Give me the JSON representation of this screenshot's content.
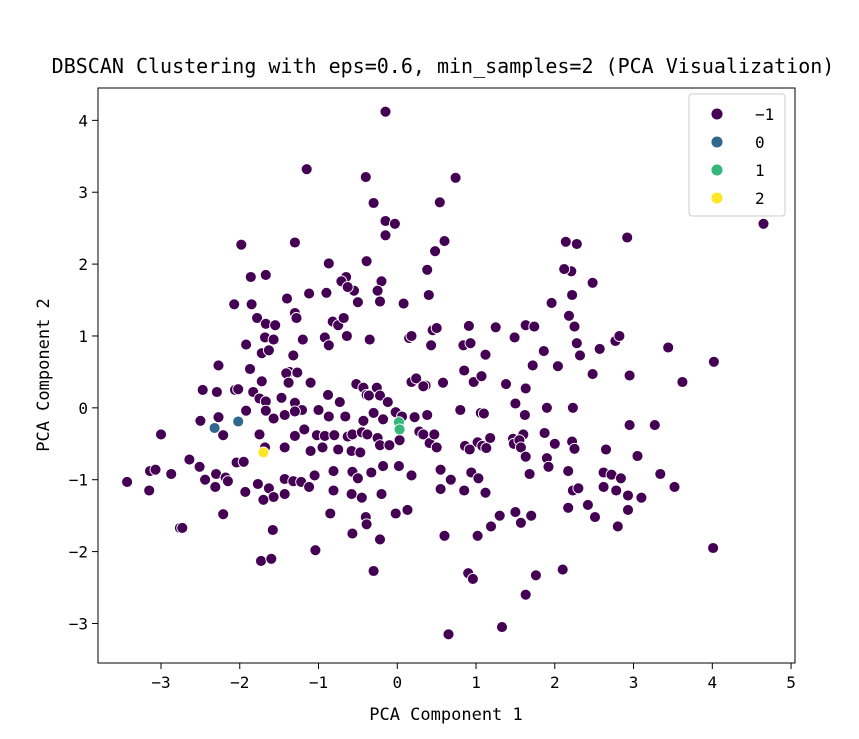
{
  "chart_data": {
    "type": "scatter",
    "title": "DBSCAN Clustering with eps=0.6, min_samples=2 (PCA Visualization)",
    "xlabel": "PCA Component 1",
    "ylabel": "PCA Component 2",
    "xlim": [
      -3.8,
      5.05
    ],
    "ylim": [
      -3.55,
      4.45
    ],
    "xticks": [
      -3,
      -2,
      -1,
      0,
      1,
      2,
      3,
      4,
      5
    ],
    "yticks": [
      -3,
      -2,
      -1,
      0,
      1,
      2,
      3,
      4
    ],
    "xtick_labels": [
      "−3",
      "−2",
      "−1",
      "0",
      "1",
      "2",
      "3",
      "4",
      "5"
    ],
    "ytick_labels": [
      "−3",
      "−2",
      "−1",
      "0",
      "1",
      "2",
      "3",
      "4"
    ],
    "grid": false,
    "legend_position": "top-right",
    "series": [
      {
        "name": "−1",
        "color": "#440154",
        "points": [
          [
            -0.15,
            4.12
          ],
          [
            -1.15,
            3.32
          ],
          [
            -0.4,
            3.21
          ],
          [
            0.74,
            3.2
          ],
          [
            -0.3,
            2.85
          ],
          [
            0.54,
            2.86
          ],
          [
            -0.15,
            2.6
          ],
          [
            -0.03,
            2.56
          ],
          [
            -0.15,
            2.4
          ],
          [
            0.6,
            2.32
          ],
          [
            0.48,
            2.18
          ],
          [
            -1.3,
            2.3
          ],
          [
            -1.98,
            2.27
          ],
          [
            -0.87,
            2.01
          ],
          [
            -0.39,
            2.04
          ],
          [
            0.38,
            1.92
          ],
          [
            -0.65,
            1.82
          ],
          [
            -0.71,
            1.76
          ],
          [
            -1.67,
            1.85
          ],
          [
            -1.86,
            1.82
          ],
          [
            -1.12,
            1.59
          ],
          [
            -0.9,
            1.6
          ],
          [
            -0.55,
            1.63
          ],
          [
            -0.63,
            1.68
          ],
          [
            -0.2,
            1.76
          ],
          [
            -0.25,
            1.63
          ],
          [
            -0.22,
            1.48
          ],
          [
            -0.5,
            1.47
          ],
          [
            0.08,
            1.45
          ],
          [
            0.4,
            1.57
          ],
          [
            -2.07,
            1.44
          ],
          [
            -1.85,
            1.44
          ],
          [
            -1.4,
            1.52
          ],
          [
            -1.3,
            1.32
          ],
          [
            -1.28,
            1.25
          ],
          [
            -1.78,
            1.25
          ],
          [
            -1.67,
            1.17
          ],
          [
            -1.55,
            1.15
          ],
          [
            -0.82,
            1.2
          ],
          [
            -0.75,
            1.15
          ],
          [
            -0.68,
            1.25
          ],
          [
            0.45,
            1.08
          ],
          [
            0.5,
            1.11
          ],
          [
            0.91,
            1.14
          ],
          [
            1.25,
            1.12
          ],
          [
            1.63,
            1.15
          ],
          [
            1.74,
            1.13
          ],
          [
            -1.92,
            0.88
          ],
          [
            -1.68,
            0.98
          ],
          [
            -1.57,
            0.95
          ],
          [
            -1.2,
            0.95
          ],
          [
            -0.92,
            0.98
          ],
          [
            -0.87,
            0.87
          ],
          [
            -0.64,
            1.0
          ],
          [
            -0.35,
            0.95
          ],
          [
            0.15,
            0.97
          ],
          [
            0.18,
            1.0
          ],
          [
            0.43,
            0.87
          ],
          [
            0.84,
            0.87
          ],
          [
            0.93,
            0.9
          ],
          [
            1.12,
            0.74
          ],
          [
            1.49,
            0.98
          ],
          [
            1.86,
            0.79
          ],
          [
            2.18,
            1.28
          ],
          [
            2.25,
            1.13
          ],
          [
            2.48,
            1.74
          ],
          [
            2.22,
            1.57
          ],
          [
            2.28,
            2.28
          ],
          [
            2.14,
            2.31
          ],
          [
            2.21,
            1.9
          ],
          [
            2.12,
            1.93
          ],
          [
            2.92,
            2.37
          ],
          [
            2.77,
            0.93
          ],
          [
            2.82,
            1.0
          ],
          [
            2.28,
            0.9
          ],
          [
            2.57,
            0.82
          ],
          [
            3.44,
            0.84
          ],
          [
            2.32,
            0.73
          ],
          [
            1.96,
            1.46
          ],
          [
            -2.27,
            0.59
          ],
          [
            -1.72,
            0.76
          ],
          [
            -1.63,
            0.8
          ],
          [
            -1.32,
            0.73
          ],
          [
            -1.37,
            0.5
          ],
          [
            -1.41,
            0.48
          ],
          [
            -1.27,
            0.49
          ],
          [
            -1.1,
            0.35
          ],
          [
            -1.38,
            0.35
          ],
          [
            -1.72,
            0.37
          ],
          [
            -1.87,
            0.54
          ],
          [
            -2.06,
            0.25
          ],
          [
            -2.29,
            0.22
          ],
          [
            -2.47,
            0.25
          ],
          [
            -2.02,
            0.26
          ],
          [
            -1.83,
            0.22
          ],
          [
            -1.75,
            0.13
          ],
          [
            -1.67,
            0.09
          ],
          [
            -1.47,
            0.14
          ],
          [
            -1.3,
            0.07
          ],
          [
            -1.21,
            -0.03
          ],
          [
            -0.88,
            0.18
          ],
          [
            -0.73,
            0.08
          ],
          [
            -0.52,
            0.33
          ],
          [
            -0.43,
            0.28
          ],
          [
            -0.39,
            0.18
          ],
          [
            -0.36,
            0.17
          ],
          [
            -0.26,
            0.28
          ],
          [
            -0.22,
            0.17
          ],
          [
            -0.12,
            0.08
          ],
          [
            0.18,
            0.36
          ],
          [
            0.24,
            0.41
          ],
          [
            0.36,
            0.31
          ],
          [
            0.33,
            0.3
          ],
          [
            0.85,
            0.52
          ],
          [
            0.58,
            0.35
          ],
          [
            0.97,
            0.36
          ],
          [
            1.07,
            0.44
          ],
          [
            1.38,
            0.33
          ],
          [
            1.72,
            0.59
          ],
          [
            1.63,
            0.27
          ],
          [
            2.04,
            0.58
          ],
          [
            2.48,
            0.47
          ],
          [
            2.95,
            0.45
          ],
          [
            3.62,
            0.36
          ],
          [
            4.02,
            0.64
          ],
          [
            -2.21,
            -0.38
          ],
          [
            -2.5,
            -0.18
          ],
          [
            -2.27,
            -0.13
          ],
          [
            -1.92,
            -0.04
          ],
          [
            -1.67,
            -0.04
          ],
          [
            -1.57,
            -0.15
          ],
          [
            -1.43,
            -0.1
          ],
          [
            -1.3,
            -0.05
          ],
          [
            -1.0,
            -0.03
          ],
          [
            -0.87,
            -0.12
          ],
          [
            -0.66,
            -0.12
          ],
          [
            -0.43,
            -0.18
          ],
          [
            -0.3,
            -0.07
          ],
          [
            -0.18,
            -0.16
          ],
          [
            -0.02,
            -0.06
          ],
          [
            0.06,
            -0.12
          ],
          [
            0.22,
            -0.13
          ],
          [
            0.38,
            -0.1
          ],
          [
            0.8,
            -0.03
          ],
          [
            1.06,
            -0.07
          ],
          [
            1.1,
            -0.08
          ],
          [
            1.5,
            0.06
          ],
          [
            1.62,
            -0.1
          ],
          [
            1.9,
            0.0
          ],
          [
            2.23,
            0.0
          ],
          [
            2.95,
            -0.24
          ],
          [
            3.27,
            -0.24
          ],
          [
            -3.0,
            -0.37
          ],
          [
            -1.75,
            -0.37
          ],
          [
            -1.3,
            -0.39
          ],
          [
            -1.18,
            -0.3
          ],
          [
            -1.02,
            -0.38
          ],
          [
            -0.92,
            -0.39
          ],
          [
            -0.8,
            -0.38
          ],
          [
            -0.63,
            -0.4
          ],
          [
            -0.57,
            -0.37
          ],
          [
            -0.45,
            -0.34
          ],
          [
            -0.38,
            -0.37
          ],
          [
            -0.25,
            -0.42
          ],
          [
            0.03,
            -0.45
          ],
          [
            0.28,
            -0.33
          ],
          [
            0.33,
            -0.37
          ],
          [
            0.41,
            -0.49
          ],
          [
            0.47,
            -0.37
          ],
          [
            0.86,
            -0.53
          ],
          [
            1.02,
            -0.48
          ],
          [
            1.08,
            -0.53
          ],
          [
            1.18,
            -0.42
          ],
          [
            1.47,
            -0.43
          ],
          [
            1.48,
            -0.5
          ],
          [
            1.6,
            -0.37
          ],
          [
            1.55,
            -0.45
          ],
          [
            1.87,
            -0.35
          ],
          [
            2.0,
            -0.5
          ],
          [
            2.22,
            -0.47
          ],
          [
            -1.68,
            -0.55
          ],
          [
            -1.43,
            -0.55
          ],
          [
            -1.1,
            -0.6
          ],
          [
            -0.95,
            -0.55
          ],
          [
            -0.75,
            -0.58
          ],
          [
            -0.58,
            -0.6
          ],
          [
            -0.47,
            -0.62
          ],
          [
            -0.22,
            -0.52
          ],
          [
            -0.1,
            -0.52
          ],
          [
            0.5,
            -0.55
          ],
          [
            0.92,
            -0.58
          ],
          [
            1.13,
            -0.56
          ],
          [
            1.57,
            -0.55
          ],
          [
            1.63,
            -0.68
          ],
          [
            1.9,
            -0.7
          ],
          [
            2.25,
            -0.57
          ],
          [
            2.17,
            -0.88
          ],
          [
            2.65,
            -0.58
          ],
          [
            3.05,
            -0.67
          ],
          [
            -3.14,
            -0.88
          ],
          [
            -3.07,
            -0.86
          ],
          [
            -2.87,
            -0.92
          ],
          [
            -2.64,
            -0.72
          ],
          [
            -2.51,
            -0.82
          ],
          [
            -2.3,
            -0.92
          ],
          [
            -2.18,
            -0.97
          ],
          [
            -2.04,
            -0.76
          ],
          [
            -1.95,
            -0.75
          ],
          [
            -1.77,
            -1.06
          ],
          [
            -1.63,
            -1.12
          ],
          [
            -1.43,
            -0.99
          ],
          [
            -1.32,
            -1.02
          ],
          [
            -1.22,
            -1.03
          ],
          [
            -1.05,
            -0.94
          ],
          [
            -0.81,
            -0.88
          ],
          [
            -0.57,
            -0.89
          ],
          [
            -0.5,
            -0.98
          ],
          [
            -0.33,
            -0.9
          ],
          [
            -0.18,
            -0.81
          ],
          [
            0.02,
            -0.81
          ],
          [
            0.18,
            -0.94
          ],
          [
            0.55,
            -0.86
          ],
          [
            0.68,
            -1.0
          ],
          [
            0.94,
            -0.9
          ],
          [
            1.03,
            -0.98
          ],
          [
            1.68,
            -0.92
          ],
          [
            1.92,
            -0.82
          ],
          [
            2.23,
            -1.15
          ],
          [
            2.62,
            -0.9
          ],
          [
            2.72,
            -0.93
          ],
          [
            2.84,
            -0.98
          ],
          [
            3.34,
            -0.92
          ],
          [
            3.52,
            -1.1
          ],
          [
            -3.43,
            -1.03
          ],
          [
            -3.15,
            -1.15
          ],
          [
            -2.44,
            -1.0
          ],
          [
            -2.31,
            -1.1
          ],
          [
            -2.15,
            -1.02
          ],
          [
            -1.93,
            -1.17
          ],
          [
            -1.57,
            -1.24
          ],
          [
            -1.43,
            -1.2
          ],
          [
            -1.12,
            -1.1
          ],
          [
            -0.81,
            -1.15
          ],
          [
            -0.58,
            -1.2
          ],
          [
            -0.45,
            -1.25
          ],
          [
            -0.2,
            -1.2
          ],
          [
            0.55,
            -1.13
          ],
          [
            0.85,
            -1.15
          ],
          [
            1.12,
            -1.18
          ],
          [
            2.3,
            -1.12
          ],
          [
            2.62,
            -1.1
          ],
          [
            2.78,
            -1.15
          ],
          [
            2.93,
            -1.22
          ],
          [
            3.1,
            -1.25
          ],
          [
            -2.21,
            -1.48
          ],
          [
            -1.7,
            -1.28
          ],
          [
            -0.85,
            -1.47
          ],
          [
            -0.4,
            -1.52
          ],
          [
            -0.02,
            -1.47
          ],
          [
            0.13,
            -1.42
          ],
          [
            1.3,
            -1.5
          ],
          [
            1.5,
            -1.45
          ],
          [
            1.7,
            -1.5
          ],
          [
            2.17,
            -1.39
          ],
          [
            2.42,
            -1.35
          ],
          [
            2.51,
            -1.52
          ],
          [
            2.93,
            -1.42
          ],
          [
            -2.76,
            -1.67
          ],
          [
            -2.73,
            -1.67
          ],
          [
            -1.58,
            -1.7
          ],
          [
            -0.39,
            -1.62
          ],
          [
            -0.57,
            -1.75
          ],
          [
            -0.22,
            -1.83
          ],
          [
            0.6,
            -1.78
          ],
          [
            1.02,
            -1.78
          ],
          [
            1.19,
            -1.65
          ],
          [
            1.57,
            -1.6
          ],
          [
            2.8,
            -1.65
          ],
          [
            -1.04,
            -1.98
          ],
          [
            -1.73,
            -2.13
          ],
          [
            -1.6,
            -2.1
          ],
          [
            -0.3,
            -2.27
          ],
          [
            4.01,
            -1.95
          ],
          [
            1.76,
            -2.33
          ],
          [
            2.1,
            -2.25
          ],
          [
            0.9,
            -2.3
          ],
          [
            0.96,
            -2.38
          ],
          [
            1.63,
            -2.6
          ],
          [
            1.33,
            -3.05
          ],
          [
            0.65,
            -3.15
          ],
          [
            4.65,
            2.56
          ]
        ]
      },
      {
        "name": "0",
        "color": "#31688e",
        "points": [
          [
            -2.32,
            -0.28
          ],
          [
            -2.02,
            -0.19
          ]
        ]
      },
      {
        "name": "1",
        "color": "#35b779",
        "points": [
          [
            0.02,
            -0.2
          ],
          [
            0.03,
            -0.3
          ]
        ]
      },
      {
        "name": "2",
        "color": "#fde725",
        "points": [
          [
            -1.7,
            -0.62
          ]
        ]
      }
    ]
  }
}
